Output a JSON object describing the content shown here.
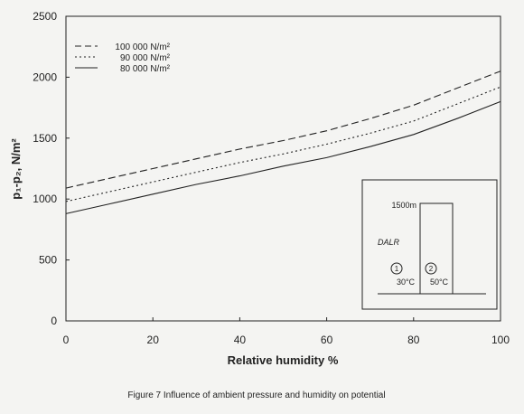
{
  "chart_data": {
    "type": "line",
    "xlabel": "Relative humidity %",
    "ylabel": "p₁-p₂, N/m²",
    "xlim": [
      0,
      100
    ],
    "ylim": [
      0,
      2500
    ],
    "xticks": [
      0,
      20,
      40,
      60,
      80,
      100
    ],
    "yticks": [
      0,
      500,
      1000,
      1500,
      2000,
      2500
    ],
    "grid": false,
    "legend_position": "top-left",
    "x": [
      0,
      10,
      20,
      30,
      40,
      50,
      60,
      70,
      80,
      90,
      100
    ],
    "series": [
      {
        "name": "100 000 N/m²",
        "style": "dashed",
        "values": [
          1090,
          1170,
          1250,
          1330,
          1410,
          1480,
          1560,
          1660,
          1770,
          1910,
          2050
        ]
      },
      {
        "name": "90 000 N/m²",
        "style": "dotted",
        "values": [
          980,
          1060,
          1140,
          1220,
          1300,
          1370,
          1450,
          1540,
          1640,
          1780,
          1920
        ]
      },
      {
        "name": "80 000 N/m²",
        "style": "solid",
        "values": [
          880,
          960,
          1040,
          1120,
          1190,
          1270,
          1340,
          1430,
          1530,
          1660,
          1800
        ]
      }
    ],
    "inset": {
      "height_label": "1500m",
      "dalr_label": "DALR",
      "column1_number": "1",
      "column2_number": "2",
      "temp1": "30°C",
      "temp2": "50°C"
    }
  },
  "caption": "Figure 7  Influence of ambient pressure and humidity on potential"
}
